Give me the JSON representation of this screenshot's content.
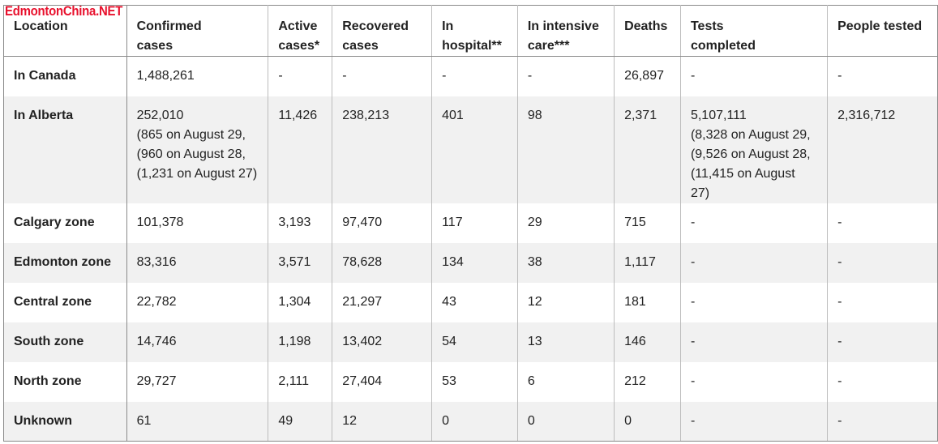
{
  "watermark": "EdmontonChina.NET",
  "headers": [
    "Location",
    "Confirmed cases",
    "Active cases*",
    "Recovered cases",
    "In hospital**",
    "In intensive care***",
    "Deaths",
    "Tests completed",
    "People tested"
  ],
  "rows": [
    [
      "In Canada",
      "1,488,261",
      "-",
      "-",
      "-",
      "-",
      "26,897",
      "-",
      "-"
    ],
    [
      "In Alberta",
      "252,010\n(865 on August 29,\n(960 on August 28,\n(1,231 on August 27)",
      "11,426",
      "238,213",
      "401",
      "98",
      "2,371",
      "5,107,111\n(8,328 on August 29,\n(9,526 on August 28,\n(11,415 on August 27)",
      "2,316,712"
    ],
    [
      "Calgary zone",
      "101,378",
      "3,193",
      "97,470",
      "117",
      "29",
      "715",
      "-",
      "-"
    ],
    [
      "Edmonton zone",
      "83,316",
      "3,571",
      "78,628",
      "134",
      "38",
      "1,117",
      "-",
      "-"
    ],
    [
      "Central zone",
      "22,782",
      "1,304",
      "21,297",
      "43",
      "12",
      "181",
      "-",
      "-"
    ],
    [
      "South zone",
      "14,746",
      "1,198",
      "13,402",
      "54",
      "13",
      "146",
      "-",
      "-"
    ],
    [
      "North zone",
      "29,727",
      "2,111",
      "27,404",
      "53",
      "6",
      "212",
      "-",
      "-"
    ],
    [
      "Unknown",
      "61",
      "49",
      "12",
      "0",
      "0",
      "0",
      "-",
      "-"
    ]
  ]
}
